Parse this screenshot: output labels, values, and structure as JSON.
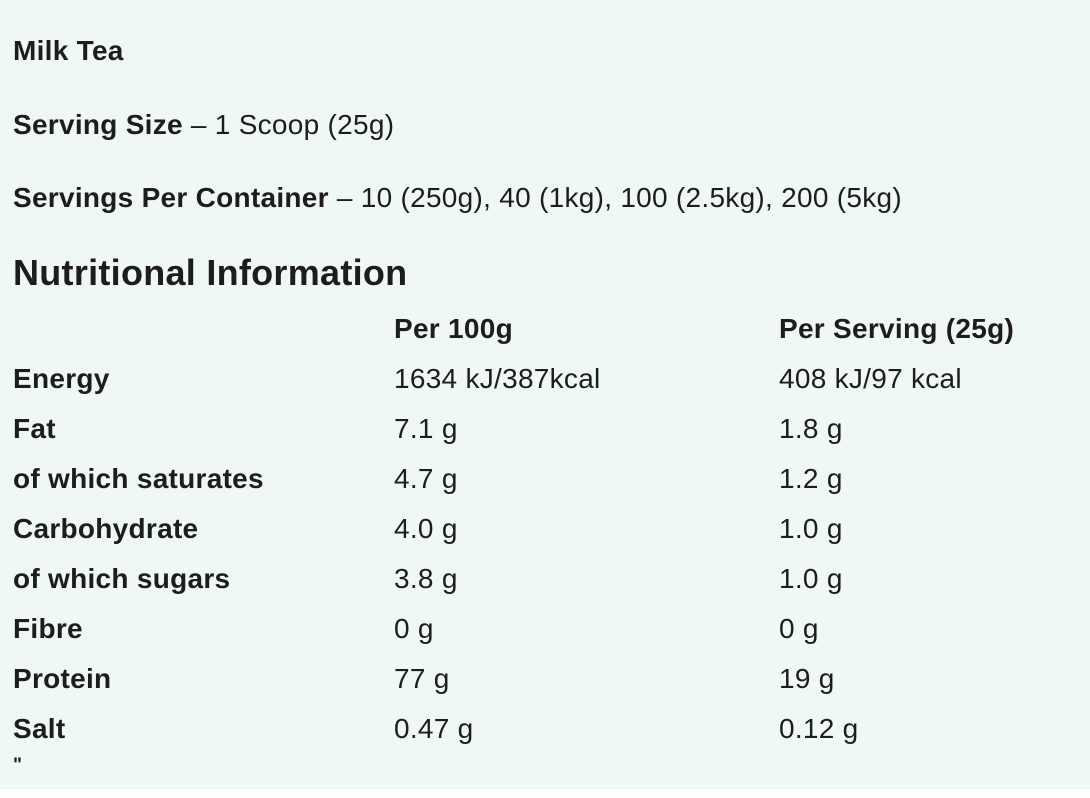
{
  "page": {
    "background": "#eff8f5",
    "text_color": "#1d1d1b"
  },
  "header": {
    "product_name": "Milk Tea",
    "serving_size_label": "Serving Size",
    "serving_size_value": "– 1 Scoop (25g)",
    "servings_per_container_label": "Servings Per Container",
    "servings_per_container_value": "– 10 (250g), 40 (1kg), 100 (2.5kg), 200 (5kg)"
  },
  "nutrition": {
    "title": "Nutritional Information",
    "columns": [
      "Per 100g",
      "Per Serving (25g)"
    ],
    "rows": [
      {
        "label": "Energy",
        "per_100g": "1634 kJ/387kcal",
        "per_serving": "408 kJ/97 kcal"
      },
      {
        "label": "Fat",
        "per_100g": "7.1 g",
        "per_serving": "1.8 g"
      },
      {
        "label": "of which saturates",
        "per_100g": "4.7 g",
        "per_serving": "1.2 g"
      },
      {
        "label": "Carbohydrate",
        "per_100g": "4.0 g",
        "per_serving": "1.0 g"
      },
      {
        "label": "of which sugars",
        "per_100g": "3.8 g",
        "per_serving": "1.0 g"
      },
      {
        "label": "Fibre",
        "per_100g": "0 g",
        "per_serving": "0 g"
      },
      {
        "label": "Protein",
        "per_100g": "77 g",
        "per_serving": "19 g"
      },
      {
        "label": "Salt",
        "per_100g": "0.47 g",
        "per_serving": "0.12 g"
      }
    ]
  },
  "footer": {
    "stray_text": "\""
  }
}
